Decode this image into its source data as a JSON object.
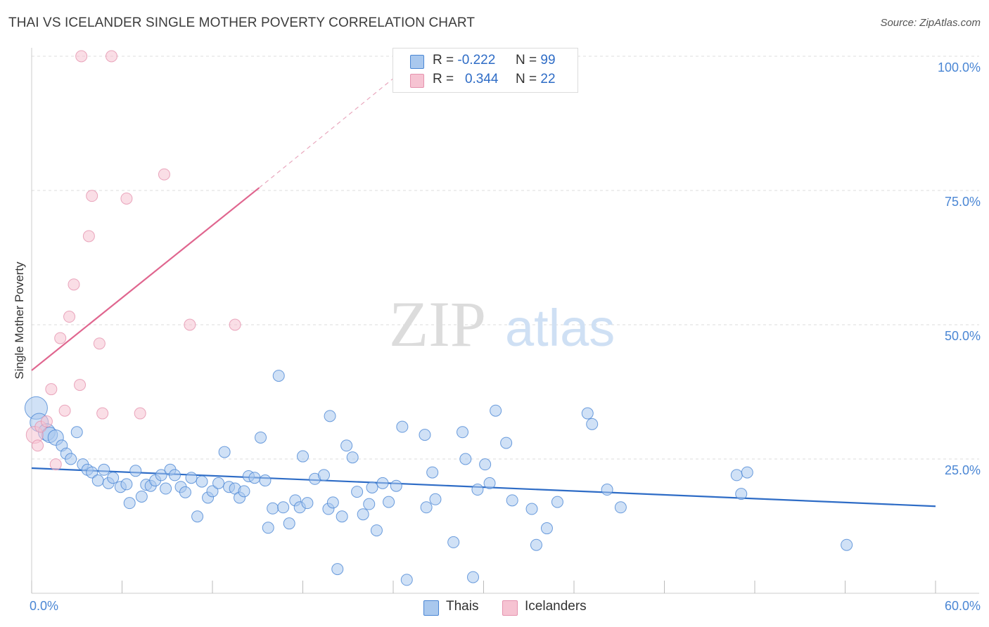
{
  "header": {
    "title": "THAI VS ICELANDER SINGLE MOTHER POVERTY CORRELATION CHART",
    "source": "Source: ZipAtlas.com"
  },
  "watermark": {
    "zip": "ZIP",
    "atlas": "atlas"
  },
  "legend": {
    "thais": {
      "r_label": "R =",
      "r_value": "-0.222",
      "n_label": "N =",
      "n_value": "99"
    },
    "icelanders": {
      "r_label": "R =",
      "r_value": "0.344",
      "n_label": "N =",
      "n_value": "22"
    }
  },
  "bottom_legend": {
    "thais": "Thais",
    "icelanders": "Icelanders"
  },
  "colors": {
    "thais_fill": "#a9c8ee",
    "thais_stroke": "#4a86d4",
    "thais_line": "#2e6cc6",
    "icelanders_fill": "#f6c3d2",
    "icelanders_stroke": "#e592ae",
    "icelanders_line": "#e0668f",
    "tick_text": "#4a86d4"
  },
  "chart_data": {
    "type": "scatter",
    "title": "THAI VS ICELANDER SINGLE MOTHER POVERTY CORRELATION CHART",
    "xlabel": "",
    "ylabel": "Single Mother Poverty",
    "xlim": [
      0,
      60
    ],
    "ylim": [
      0,
      100
    ],
    "x_tick_labels": [
      "0.0%",
      "60.0%"
    ],
    "y_ticks": [
      25,
      50,
      75,
      100
    ],
    "y_tick_labels": [
      "25.0%",
      "50.0%",
      "75.0%",
      "100.0%"
    ],
    "grid": true,
    "legend_position": "top-center",
    "series": [
      {
        "name": "Thais",
        "r": -0.222,
        "n": 99,
        "trend": {
          "x": [
            0,
            60
          ],
          "y": [
            23.3,
            16.2
          ]
        },
        "points": [
          {
            "x": 0.3,
            "y": 34.5,
            "s": 16
          },
          {
            "x": 0.5,
            "y": 31.8,
            "s": 13
          },
          {
            "x": 1.0,
            "y": 30.0,
            "s": 12
          },
          {
            "x": 1.2,
            "y": 29.5,
            "s": 11
          },
          {
            "x": 1.6,
            "y": 29.0,
            "s": 11
          },
          {
            "x": 2.0,
            "y": 27.5
          },
          {
            "x": 2.3,
            "y": 26.0
          },
          {
            "x": 2.6,
            "y": 25.0
          },
          {
            "x": 3.0,
            "y": 30.0
          },
          {
            "x": 3.4,
            "y": 24.0
          },
          {
            "x": 3.7,
            "y": 23.0
          },
          {
            "x": 4.0,
            "y": 22.5
          },
          {
            "x": 4.4,
            "y": 21.0
          },
          {
            "x": 4.8,
            "y": 23.0
          },
          {
            "x": 5.1,
            "y": 20.5
          },
          {
            "x": 5.4,
            "y": 21.5
          },
          {
            "x": 5.9,
            "y": 19.8
          },
          {
            "x": 6.3,
            "y": 20.3
          },
          {
            "x": 6.5,
            "y": 16.8
          },
          {
            "x": 6.9,
            "y": 22.8
          },
          {
            "x": 7.3,
            "y": 18.0
          },
          {
            "x": 7.6,
            "y": 20.2
          },
          {
            "x": 7.9,
            "y": 20.0
          },
          {
            "x": 8.2,
            "y": 21.0
          },
          {
            "x": 8.6,
            "y": 22.0
          },
          {
            "x": 8.9,
            "y": 19.5
          },
          {
            "x": 9.2,
            "y": 23.0
          },
          {
            "x": 9.5,
            "y": 22.0
          },
          {
            "x": 9.9,
            "y": 19.8
          },
          {
            "x": 10.2,
            "y": 18.8
          },
          {
            "x": 10.6,
            "y": 21.5
          },
          {
            "x": 11.0,
            "y": 14.3
          },
          {
            "x": 11.3,
            "y": 20.8
          },
          {
            "x": 11.7,
            "y": 17.8
          },
          {
            "x": 12.0,
            "y": 19.0
          },
          {
            "x": 12.4,
            "y": 20.5
          },
          {
            "x": 12.8,
            "y": 26.3
          },
          {
            "x": 13.1,
            "y": 19.8
          },
          {
            "x": 13.5,
            "y": 19.5
          },
          {
            "x": 13.8,
            "y": 17.8
          },
          {
            "x": 14.1,
            "y": 19.0
          },
          {
            "x": 14.4,
            "y": 21.8
          },
          {
            "x": 14.8,
            "y": 21.5
          },
          {
            "x": 15.2,
            "y": 29.0
          },
          {
            "x": 15.5,
            "y": 21.0
          },
          {
            "x": 15.7,
            "y": 12.2
          },
          {
            "x": 16.0,
            "y": 15.8
          },
          {
            "x": 16.4,
            "y": 40.5
          },
          {
            "x": 16.7,
            "y": 16.0
          },
          {
            "x": 17.1,
            "y": 13.0
          },
          {
            "x": 17.5,
            "y": 17.3
          },
          {
            "x": 17.8,
            "y": 16.0
          },
          {
            "x": 18.0,
            "y": 25.5
          },
          {
            "x": 18.3,
            "y": 16.8
          },
          {
            "x": 18.8,
            "y": 21.3
          },
          {
            "x": 19.4,
            "y": 22.0
          },
          {
            "x": 19.7,
            "y": 15.7
          },
          {
            "x": 19.8,
            "y": 33.0
          },
          {
            "x": 20.0,
            "y": 16.9
          },
          {
            "x": 20.6,
            "y": 14.3
          },
          {
            "x": 20.9,
            "y": 27.5
          },
          {
            "x": 21.3,
            "y": 25.3
          },
          {
            "x": 21.6,
            "y": 18.9
          },
          {
            "x": 22.0,
            "y": 14.7
          },
          {
            "x": 22.4,
            "y": 16.6
          },
          {
            "x": 22.6,
            "y": 19.7
          },
          {
            "x": 22.9,
            "y": 11.7
          },
          {
            "x": 23.3,
            "y": 20.5
          },
          {
            "x": 23.7,
            "y": 17.0
          },
          {
            "x": 24.2,
            "y": 20.0
          },
          {
            "x": 24.6,
            "y": 31.0
          },
          {
            "x": 24.9,
            "y": 2.5
          },
          {
            "x": 26.1,
            "y": 29.5
          },
          {
            "x": 26.2,
            "y": 16.0
          },
          {
            "x": 26.6,
            "y": 22.5
          },
          {
            "x": 26.8,
            "y": 17.5
          },
          {
            "x": 28.0,
            "y": 9.5
          },
          {
            "x": 28.6,
            "y": 30.0
          },
          {
            "x": 28.8,
            "y": 25.0
          },
          {
            "x": 29.3,
            "y": 3.0
          },
          {
            "x": 29.6,
            "y": 19.3
          },
          {
            "x": 30.1,
            "y": 24.0
          },
          {
            "x": 30.4,
            "y": 20.5
          },
          {
            "x": 30.8,
            "y": 34.0
          },
          {
            "x": 31.5,
            "y": 28.0
          },
          {
            "x": 31.9,
            "y": 17.3
          },
          {
            "x": 33.2,
            "y": 15.7
          },
          {
            "x": 33.5,
            "y": 9.0
          },
          {
            "x": 34.2,
            "y": 12.1
          },
          {
            "x": 34.9,
            "y": 17.0
          },
          {
            "x": 36.9,
            "y": 33.5
          },
          {
            "x": 37.2,
            "y": 31.5
          },
          {
            "x": 38.2,
            "y": 19.3
          },
          {
            "x": 39.1,
            "y": 16.0
          },
          {
            "x": 46.8,
            "y": 22.0
          },
          {
            "x": 47.1,
            "y": 18.5
          },
          {
            "x": 47.5,
            "y": 22.5
          },
          {
            "x": 54.1,
            "y": 9.0
          },
          {
            "x": 20.3,
            "y": 4.5
          }
        ]
      },
      {
        "name": "Icelanders",
        "r": 0.344,
        "n": 22,
        "trend": {
          "x": [
            0,
            15.1
          ],
          "y": [
            41.5,
            75.5
          ]
        },
        "trend_dashed": {
          "x": [
            15.1,
            24.5
          ],
          "y": [
            75.5,
            97.0
          ]
        },
        "points": [
          {
            "x": 0.2,
            "y": 29.5,
            "s": 12
          },
          {
            "x": 0.4,
            "y": 27.5
          },
          {
            "x": 0.6,
            "y": 31.0
          },
          {
            "x": 1.0,
            "y": 32.0
          },
          {
            "x": 1.3,
            "y": 38.0
          },
          {
            "x": 1.6,
            "y": 24.0
          },
          {
            "x": 1.9,
            "y": 47.5
          },
          {
            "x": 2.2,
            "y": 34.0
          },
          {
            "x": 2.5,
            "y": 51.5
          },
          {
            "x": 2.8,
            "y": 57.5
          },
          {
            "x": 3.2,
            "y": 38.8
          },
          {
            "x": 3.8,
            "y": 66.5
          },
          {
            "x": 4.0,
            "y": 74.0
          },
          {
            "x": 4.5,
            "y": 46.5
          },
          {
            "x": 4.7,
            "y": 33.5
          },
          {
            "x": 5.3,
            "y": 100.0
          },
          {
            "x": 3.3,
            "y": 100.0
          },
          {
            "x": 6.3,
            "y": 73.5
          },
          {
            "x": 7.2,
            "y": 33.5
          },
          {
            "x": 8.8,
            "y": 78.0
          },
          {
            "x": 10.5,
            "y": 50.0
          },
          {
            "x": 13.5,
            "y": 50.0
          }
        ]
      }
    ]
  }
}
